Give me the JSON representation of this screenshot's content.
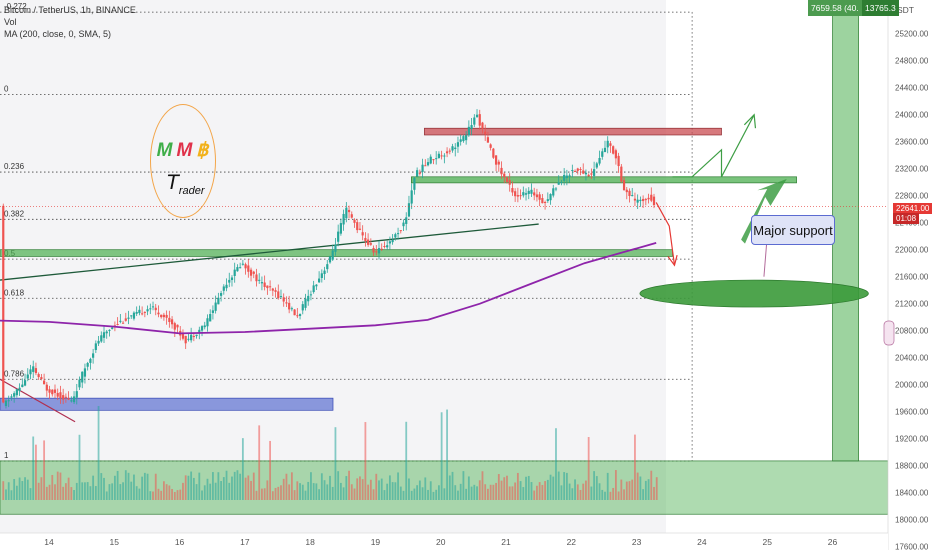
{
  "legend": {
    "symbol": "Bitcoin / TetherUS, 1h, BINANCE",
    "vol": "Vol",
    "ma": "MA (200, close, 0, SMA, 5)"
  },
  "yaxis_unit": "USDT",
  "top_box": {
    "left": "7659.58 (40.",
    "right": "13765.3"
  },
  "last_price": {
    "value": "22641.00",
    "countdown": "01:08"
  },
  "logo": {
    "letters": [
      "M",
      "M",
      "฿"
    ],
    "letter_colors": [
      "#3fae49",
      "#e0314a",
      "#f2b21b"
    ],
    "word_initial": "T",
    "word_rest": "rader"
  },
  "annotation": "Major support",
  "colors": {
    "candle_up": "#26a69a",
    "candle_down": "#ef5350",
    "ma_line": "#8e24aa",
    "zone_green": "#4caf50",
    "zone_red": "#c94c52",
    "zone_blue": "#5b6fd1",
    "ellipse": "#3b9a3a",
    "arrow_up": "#3e9e45",
    "arrow_down": "#e53935"
  },
  "chart_data": {
    "type": "candlestick",
    "title": "Bitcoin / TetherUS, 1h, BINANCE",
    "x_ticks": [
      "14",
      "15",
      "16",
      "17",
      "18",
      "19",
      "20",
      "21",
      "22",
      "23",
      "24",
      "25",
      "26"
    ],
    "y_ticks": [
      25200,
      24800,
      24400,
      24000,
      23600,
      23200,
      22800,
      22400,
      22000,
      21600,
      21200,
      20800,
      20400,
      20000,
      19600,
      19200,
      18800,
      18400,
      18000,
      17600
    ],
    "y_range": [
      17550,
      25700
    ],
    "x_range_days": [
      13.25,
      26.85
    ],
    "fib_levels": [
      {
        "label": "-0.272",
        "price": 25520
      },
      {
        "label": "0",
        "price": 24300
      },
      {
        "label": "0.236",
        "price": 23150
      },
      {
        "label": "0.382",
        "price": 22450
      },
      {
        "label": "0.5",
        "price": 21860
      },
      {
        "label": "0.618",
        "price": 21280
      },
      {
        "label": "0.786",
        "price": 20080
      },
      {
        "label": "1",
        "price": 18870
      }
    ],
    "price_path": [
      [
        13.3,
        19700
      ],
      [
        13.55,
        19950
      ],
      [
        13.75,
        20250
      ],
      [
        13.95,
        19950
      ],
      [
        14.15,
        19850
      ],
      [
        14.35,
        19750
      ],
      [
        14.55,
        20250
      ],
      [
        14.75,
        20650
      ],
      [
        15.0,
        20900
      ],
      [
        15.25,
        21000
      ],
      [
        15.55,
        21150
      ],
      [
        15.85,
        20950
      ],
      [
        16.1,
        20650
      ],
      [
        16.4,
        20900
      ],
      [
        16.7,
        21500
      ],
      [
        16.95,
        21800
      ],
      [
        17.25,
        21500
      ],
      [
        17.55,
        21300
      ],
      [
        17.8,
        21000
      ],
      [
        18.05,
        21450
      ],
      [
        18.3,
        21850
      ],
      [
        18.55,
        22600
      ],
      [
        18.8,
        22200
      ],
      [
        19.0,
        21950
      ],
      [
        19.25,
        22150
      ],
      [
        19.45,
        22400
      ],
      [
        19.6,
        23100
      ],
      [
        19.85,
        23350
      ],
      [
        20.1,
        23450
      ],
      [
        20.35,
        23650
      ],
      [
        20.55,
        24000
      ],
      [
        20.75,
        23500
      ],
      [
        20.95,
        23100
      ],
      [
        21.15,
        22800
      ],
      [
        21.4,
        22850
      ],
      [
        21.6,
        22700
      ],
      [
        21.8,
        23000
      ],
      [
        22.05,
        23200
      ],
      [
        22.3,
        23100
      ],
      [
        22.55,
        23600
      ],
      [
        22.7,
        23350
      ],
      [
        22.8,
        22900
      ],
      [
        23.0,
        22700
      ],
      [
        23.2,
        22800
      ],
      [
        23.3,
        22641
      ]
    ],
    "ma200_path": [
      [
        13.25,
        20950
      ],
      [
        14.0,
        20930
      ],
      [
        15.0,
        20860
      ],
      [
        16.0,
        20760
      ],
      [
        17.0,
        20780
      ],
      [
        18.0,
        20830
      ],
      [
        19.0,
        20880
      ],
      [
        19.8,
        20960
      ],
      [
        20.6,
        21200
      ],
      [
        21.4,
        21500
      ],
      [
        22.2,
        21800
      ],
      [
        23.3,
        22100
      ]
    ],
    "series": [
      {
        "name": "MA (200, close, 0, SMA, 5)",
        "values": []
      }
    ]
  }
}
